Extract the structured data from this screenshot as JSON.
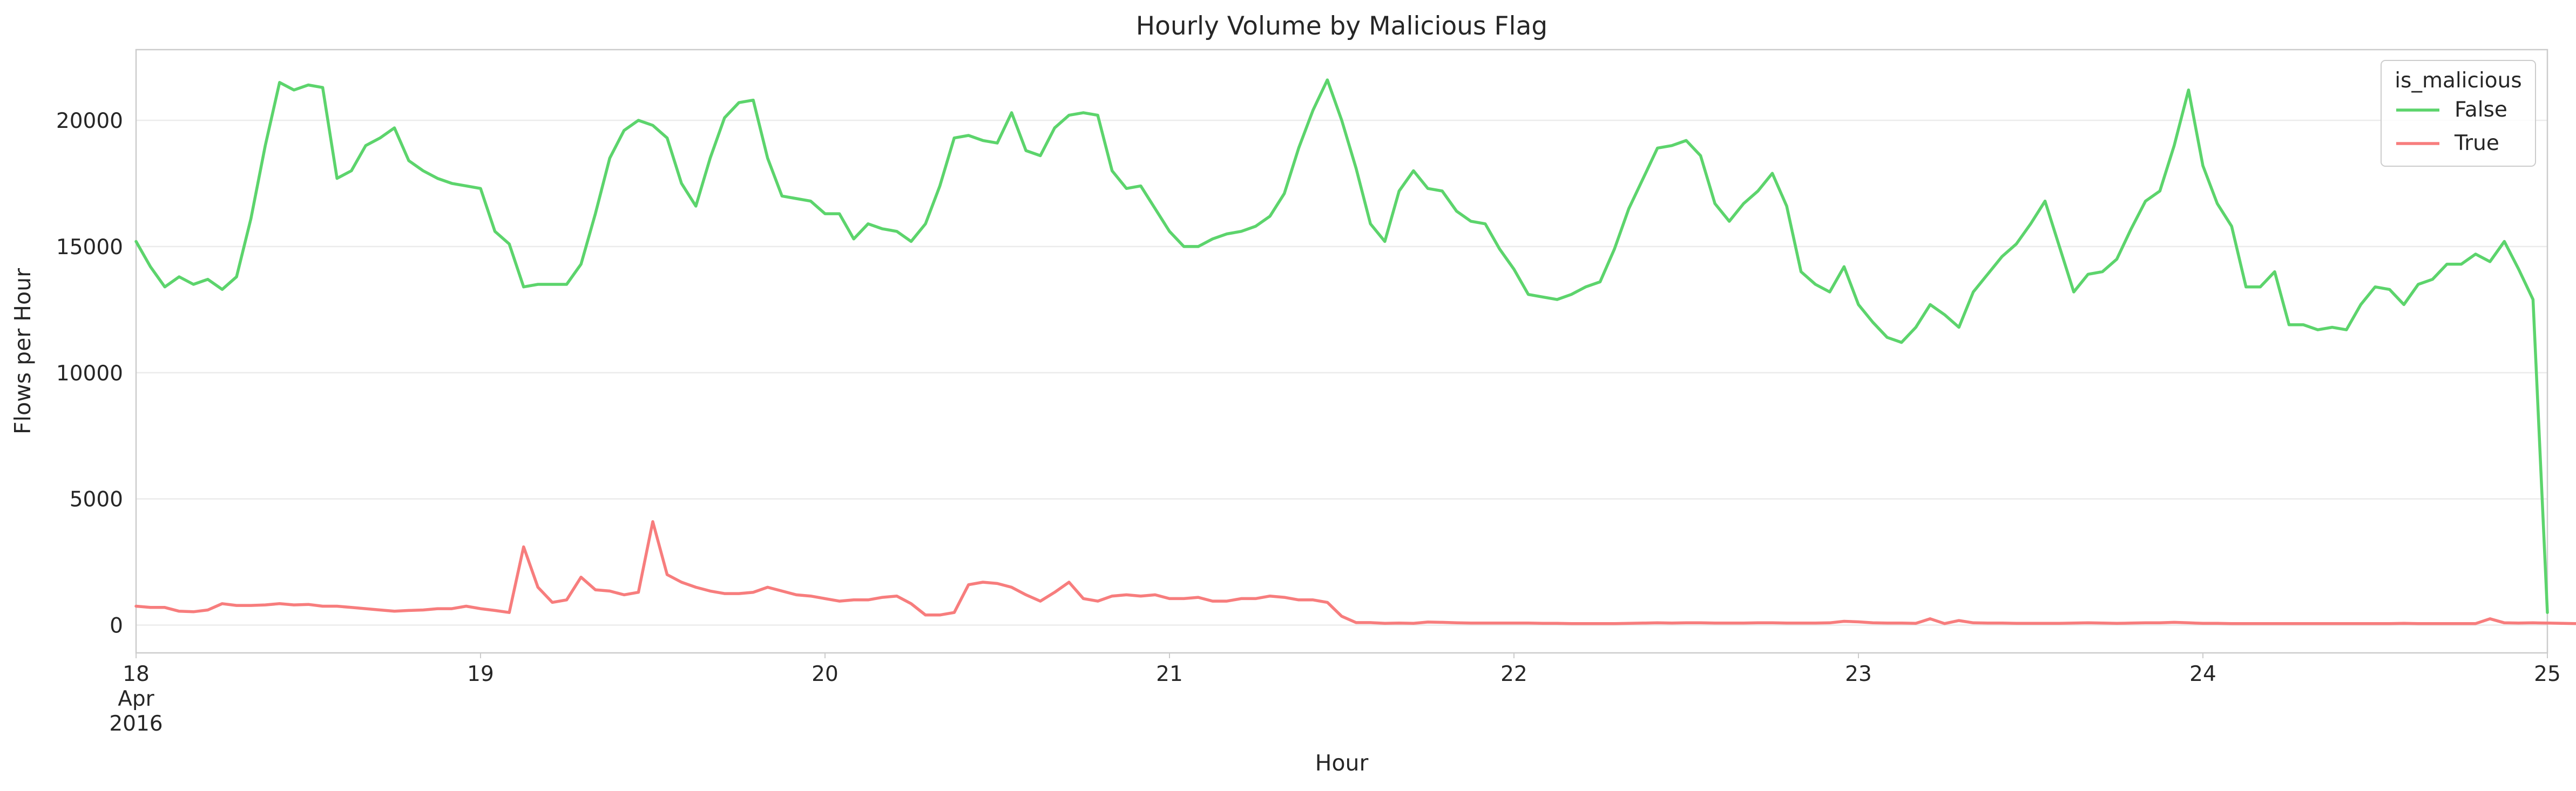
{
  "chart_data": {
    "type": "line",
    "title": "Hourly Volume by Malicious Flag",
    "xlabel": "Hour",
    "ylabel": "Flows per Hour",
    "xlim": [
      "2016-04-18 00:00",
      "2016-04-25 00:00"
    ],
    "ylim": [
      -1100,
      22800
    ],
    "grid": "y",
    "legend": {
      "title": "is_malicious",
      "position": "top-right"
    },
    "x_ticks": [
      {
        "date": "2016-04-18",
        "lines": [
          "18",
          "Apr",
          "2016"
        ]
      },
      {
        "date": "2016-04-19",
        "lines": [
          "19"
        ]
      },
      {
        "date": "2016-04-20",
        "lines": [
          "20"
        ]
      },
      {
        "date": "2016-04-21",
        "lines": [
          "21"
        ]
      },
      {
        "date": "2016-04-22",
        "lines": [
          "22"
        ]
      },
      {
        "date": "2016-04-23",
        "lines": [
          "23"
        ]
      },
      {
        "date": "2016-04-24",
        "lines": [
          "24"
        ]
      },
      {
        "date": "2016-04-25",
        "lines": [
          "25"
        ]
      }
    ],
    "y_ticks": [
      0,
      5000,
      10000,
      15000,
      20000
    ],
    "x_start": "2016-04-18 00:00",
    "x_step": "1 hour",
    "series": [
      {
        "name": "False",
        "color": "#5cd46c",
        "values": [
          15200,
          14200,
          13400,
          13800,
          13500,
          13700,
          13300,
          13800,
          16100,
          19000,
          21500,
          21200,
          21400,
          21300,
          17700,
          18000,
          19000,
          19300,
          19700,
          18400,
          18000,
          17700,
          17500,
          17400,
          17300,
          15600,
          15100,
          13400,
          13500,
          13500,
          13500,
          14300,
          16300,
          18500,
          19600,
          20000,
          19800,
          19300,
          17500,
          16600,
          18500,
          20100,
          20700,
          20800,
          18500,
          17000,
          16900,
          16800,
          16300,
          16300,
          15300,
          15900,
          15700,
          15600,
          15200,
          15900,
          17400,
          19300,
          19400,
          19200,
          19100,
          20300,
          18800,
          18600,
          19700,
          20200,
          20300,
          20200,
          18000,
          17300,
          17400,
          16500,
          15600,
          15000,
          15000,
          15300,
          15500,
          15600,
          15800,
          16200,
          17100,
          18900,
          20400,
          21600,
          20000,
          18100,
          15900,
          15200,
          17200,
          18000,
          17300,
          17200,
          16400,
          16000,
          15900,
          14900,
          14100,
          13100,
          13000,
          12900,
          13100,
          13400,
          13600,
          14900,
          16500,
          17700,
          18900,
          19000,
          19200,
          18600,
          16700,
          16000,
          16700,
          17200,
          17900,
          16600,
          14000,
          13500,
          13200,
          14200,
          12700,
          12000,
          11400,
          11200,
          11800,
          12700,
          12300,
          11800,
          13200,
          13900,
          14600,
          15100,
          15900,
          16800,
          15000,
          13200,
          13900,
          14000,
          14500,
          15700,
          16800,
          17200,
          19000,
          21200,
          18200,
          16700,
          15800,
          13400,
          13400,
          14000,
          11900,
          11900,
          11700,
          11800,
          11700,
          12700,
          13400,
          13300,
          12700,
          13500,
          13700,
          14300,
          14300,
          14700,
          14400,
          15200,
          14100,
          12900,
          500
        ]
      },
      {
        "name": "True",
        "color": "#f77d7d",
        "values": [
          750,
          700,
          700,
          550,
          530,
          600,
          850,
          780,
          780,
          800,
          850,
          800,
          820,
          750,
          750,
          700,
          650,
          600,
          550,
          580,
          600,
          650,
          650,
          750,
          650,
          580,
          500,
          3100,
          1500,
          900,
          1000,
          1900,
          1400,
          1350,
          1200,
          1300,
          4100,
          2000,
          1700,
          1500,
          1350,
          1250,
          1250,
          1300,
          1500,
          1350,
          1200,
          1150,
          1050,
          950,
          1000,
          1000,
          1100,
          1150,
          850,
          400,
          400,
          500,
          1600,
          1700,
          1650,
          1500,
          1200,
          950,
          1300,
          1700,
          1050,
          950,
          1150,
          1200,
          1150,
          1200,
          1050,
          1050,
          1100,
          950,
          950,
          1050,
          1050,
          1150,
          1100,
          1000,
          1000,
          900,
          350,
          100,
          100,
          70,
          80,
          70,
          120,
          110,
          90,
          80,
          80,
          80,
          80,
          80,
          70,
          70,
          60,
          60,
          60,
          60,
          70,
          80,
          90,
          80,
          90,
          90,
          80,
          80,
          80,
          90,
          90,
          80,
          80,
          80,
          90,
          150,
          130,
          90,
          80,
          80,
          70,
          250,
          60,
          180,
          90,
          80,
          80,
          70,
          70,
          70,
          70,
          80,
          90,
          80,
          70,
          80,
          90,
          90,
          110,
          90,
          70,
          70,
          60,
          60,
          60,
          60,
          60,
          60,
          60,
          60,
          60,
          60,
          60,
          60,
          70,
          60,
          60,
          60,
          60,
          60,
          250,
          90,
          80,
          90,
          80,
          70,
          60,
          60,
          60,
          30
        ]
      }
    ]
  }
}
